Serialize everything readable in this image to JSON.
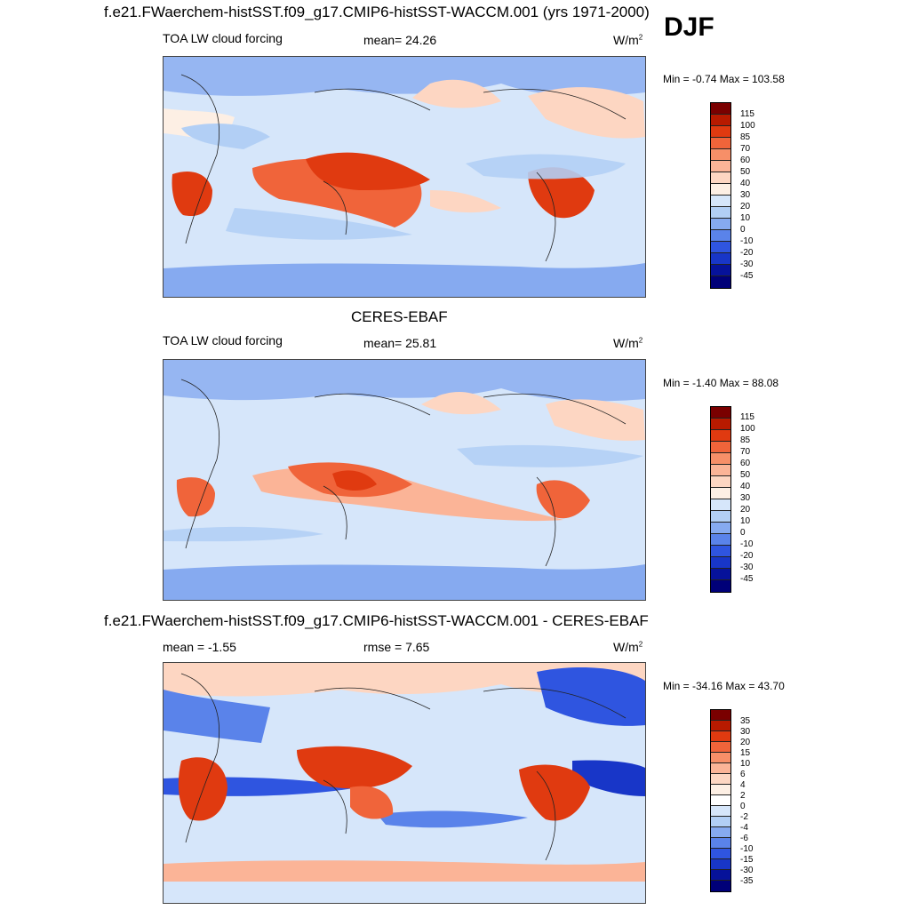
{
  "season": "DJF",
  "panels": [
    {
      "title": "f.e21.FWaerchem-histSST.f09_g17.CMIP6-histSST-WACCM.001 (yrs 1971-2000)",
      "left_label": "TOA LW cloud forcing",
      "center_label": "mean=  24.26",
      "units_base": "W/m",
      "units_exp": "2",
      "minmax": "Min =  -0.74 Max = 103.58",
      "colorbar_levels": [
        "115",
        "100",
        "85",
        "70",
        "60",
        "50",
        "40",
        "30",
        "20",
        "10",
        "0",
        "-10",
        "-20",
        "-30",
        "-45"
      ]
    },
    {
      "title": "CERES-EBAF",
      "left_label": "TOA LW cloud forcing",
      "center_label": "mean=  25.81",
      "units_base": "W/m",
      "units_exp": "2",
      "minmax": "Min =  -1.40 Max =  88.08",
      "colorbar_levels": [
        "115",
        "100",
        "85",
        "70",
        "60",
        "50",
        "40",
        "30",
        "20",
        "10",
        "0",
        "-10",
        "-20",
        "-30",
        "-45"
      ]
    },
    {
      "title": "f.e21.FWaerchem-histSST.f09_g17.CMIP6-histSST-WACCM.001 - CERES-EBAF",
      "left_label": "mean =  -1.55",
      "center_label": "rmse =   7.65",
      "units_base": "W/m",
      "units_exp": "2",
      "minmax": "Min = -34.16 Max =  43.70",
      "colorbar_levels": [
        "35",
        "30",
        "20",
        "15",
        "10",
        "6",
        "4",
        "2",
        "0",
        "-2",
        "-4",
        "-6",
        "-10",
        "-15",
        "-30",
        "-35"
      ]
    }
  ],
  "colors": {
    "abs_scale": [
      "#7a0000",
      "#b81a00",
      "#e03a10",
      "#f0643a",
      "#f78f68",
      "#fbb497",
      "#fdd6c2",
      "#fdefe4",
      "#d6e6fa",
      "#b2cff5",
      "#86aaf0",
      "#5a83ea",
      "#2f55e0",
      "#1836c8",
      "#06129a",
      "#000078"
    ],
    "diff_scale": [
      "#7a0000",
      "#b81a00",
      "#e03a10",
      "#f0643a",
      "#f78f68",
      "#fbb497",
      "#fdd6c2",
      "#fdefe4",
      "#ffffff",
      "#d6e6fa",
      "#b2cff5",
      "#86aaf0",
      "#5a83ea",
      "#2f55e0",
      "#1836c8",
      "#06129a",
      "#000078"
    ]
  }
}
